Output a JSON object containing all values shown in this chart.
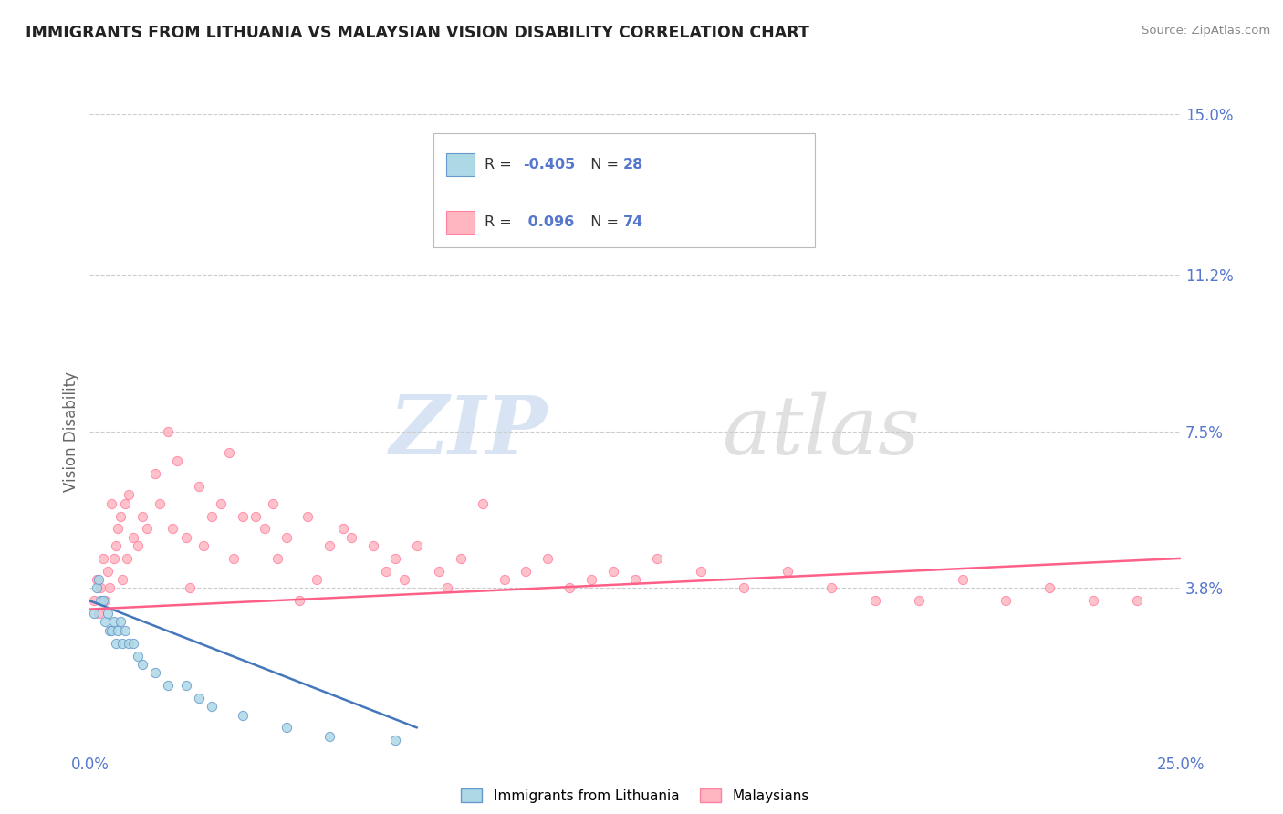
{
  "title": "IMMIGRANTS FROM LITHUANIA VS MALAYSIAN VISION DISABILITY CORRELATION CHART",
  "source": "Source: ZipAtlas.com",
  "ylabel": "Vision Disability",
  "legend_bottom": [
    "Immigrants from Lithuania",
    "Malaysians"
  ],
  "xlim": [
    0.0,
    25.0
  ],
  "ylim": [
    0.0,
    15.0
  ],
  "xtick_labels": [
    "0.0%",
    "25.0%"
  ],
  "ytick_labels": [
    "",
    "3.8%",
    "7.5%",
    "11.2%",
    "15.0%"
  ],
  "yticks": [
    0.0,
    3.8,
    7.5,
    11.2,
    15.0
  ],
  "r_blue": -0.405,
  "n_blue": 28,
  "r_pink": 0.096,
  "n_pink": 74,
  "color_blue_fill": "#ADD8E6",
  "color_blue_edge": "#6699CC",
  "color_blue_line": "#4477BB",
  "color_pink_fill": "#FFB6C1",
  "color_pink_edge": "#FF80A0",
  "color_pink_line": "#FF6088",
  "color_title": "#222222",
  "color_axis_label": "#666666",
  "color_tick_blue": "#5577CC",
  "color_grid": "#CCCCCC",
  "watermark_color": "#CCDDEE",
  "blue_x": [
    0.1,
    0.15,
    0.2,
    0.25,
    0.3,
    0.35,
    0.4,
    0.45,
    0.5,
    0.55,
    0.6,
    0.65,
    0.7,
    0.75,
    0.8,
    0.9,
    1.0,
    1.1,
    1.2,
    1.5,
    1.8,
    2.2,
    2.5,
    2.8,
    3.5,
    4.5,
    5.5,
    7.0
  ],
  "blue_y": [
    3.2,
    3.8,
    4.0,
    3.5,
    3.5,
    3.0,
    3.2,
    2.8,
    2.8,
    3.0,
    2.5,
    2.8,
    3.0,
    2.5,
    2.8,
    2.5,
    2.5,
    2.2,
    2.0,
    1.8,
    1.5,
    1.5,
    1.2,
    1.0,
    0.8,
    0.5,
    0.3,
    0.2
  ],
  "pink_x": [
    0.1,
    0.15,
    0.2,
    0.25,
    0.3,
    0.35,
    0.4,
    0.45,
    0.5,
    0.55,
    0.6,
    0.65,
    0.7,
    0.75,
    0.8,
    0.85,
    0.9,
    1.0,
    1.1,
    1.2,
    1.3,
    1.5,
    1.6,
    1.8,
    2.0,
    2.2,
    2.5,
    2.8,
    3.0,
    3.2,
    3.5,
    3.8,
    4.0,
    4.2,
    4.5,
    5.0,
    5.5,
    5.8,
    6.0,
    6.5,
    7.0,
    7.5,
    8.0,
    8.5,
    9.0,
    9.5,
    10.0,
    10.5,
    11.0,
    11.5,
    12.0,
    12.5,
    13.0,
    14.0,
    15.0,
    16.0,
    17.0,
    18.0,
    19.0,
    20.0,
    21.0,
    22.0,
    23.0,
    24.0,
    5.2,
    6.8,
    3.3,
    2.3,
    4.8,
    8.2,
    1.9,
    2.6,
    4.3,
    7.2
  ],
  "pink_y": [
    3.5,
    4.0,
    3.2,
    3.8,
    4.5,
    3.5,
    4.2,
    3.8,
    5.8,
    4.5,
    4.8,
    5.2,
    5.5,
    4.0,
    5.8,
    4.5,
    6.0,
    5.0,
    4.8,
    5.5,
    5.2,
    6.5,
    5.8,
    7.5,
    6.8,
    5.0,
    6.2,
    5.5,
    5.8,
    7.0,
    5.5,
    5.5,
    5.2,
    5.8,
    5.0,
    5.5,
    4.8,
    5.2,
    5.0,
    4.8,
    4.5,
    4.8,
    4.2,
    4.5,
    5.8,
    4.0,
    4.2,
    4.5,
    3.8,
    4.0,
    4.2,
    4.0,
    4.5,
    4.2,
    3.8,
    4.2,
    3.8,
    3.5,
    3.5,
    4.0,
    3.5,
    3.8,
    3.5,
    3.5,
    4.0,
    4.2,
    4.5,
    3.8,
    3.5,
    3.8,
    5.2,
    4.8,
    4.5,
    4.0
  ],
  "blue_trendline_x": [
    0.0,
    7.5
  ],
  "blue_trendline_y": [
    3.5,
    0.5
  ],
  "pink_trendline_x": [
    0.0,
    25.0
  ],
  "pink_trendline_y": [
    3.3,
    4.5
  ]
}
